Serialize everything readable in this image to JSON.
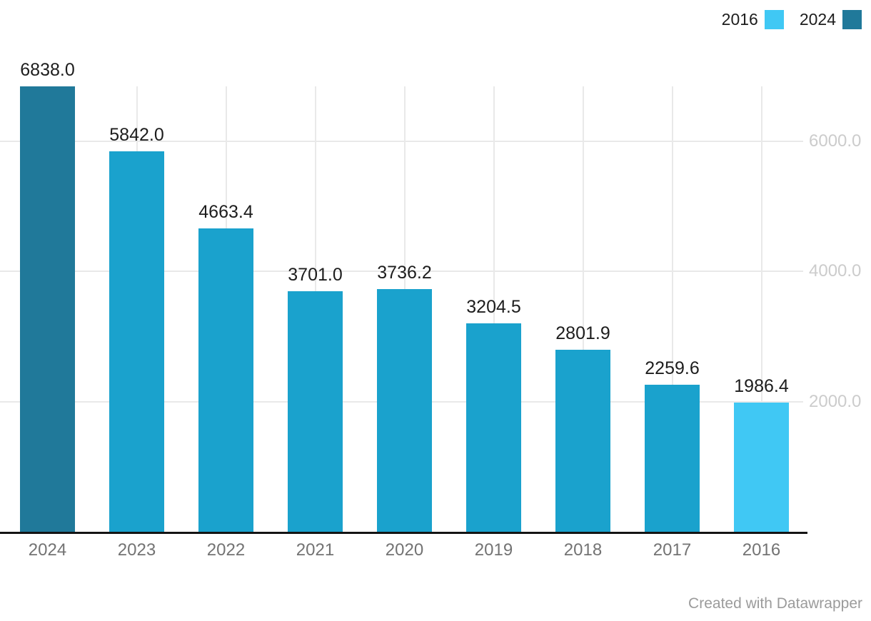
{
  "legend": {
    "items": [
      {
        "label": "2016",
        "color": "#40c8f4"
      },
      {
        "label": "2024",
        "color": "#20799a"
      }
    ]
  },
  "footer": {
    "credit": "Created with Datawrapper"
  },
  "chart_data": {
    "type": "bar",
    "title": "",
    "xlabel": "",
    "ylabel": "",
    "categories": [
      "2024",
      "2023",
      "2022",
      "2021",
      "2020",
      "2019",
      "2018",
      "2017",
      "2016"
    ],
    "values": [
      6838.0,
      5842.0,
      4663.4,
      3701.0,
      3736.2,
      3204.5,
      2801.9,
      2259.6,
      1986.4
    ],
    "value_labels": [
      "6838.0",
      "5842.0",
      "4663.4",
      "3701.0",
      "3736.2",
      "3204.5",
      "2801.9",
      "2259.6",
      "1986.4"
    ],
    "bar_colors": [
      "#20799a",
      "#1aa2cd",
      "#1aa2cd",
      "#1aa2cd",
      "#1aa2cd",
      "#1aa2cd",
      "#1aa2cd",
      "#1aa2cd",
      "#40c8f4"
    ],
    "y_ticks": [
      {
        "value": 2000,
        "label": "2000.0"
      },
      {
        "value": 4000,
        "label": "4000.0"
      },
      {
        "value": 6000,
        "label": "6000.0"
      }
    ],
    "ylim": [
      0,
      6838
    ],
    "grid": true,
    "legend_position": "top-right"
  }
}
